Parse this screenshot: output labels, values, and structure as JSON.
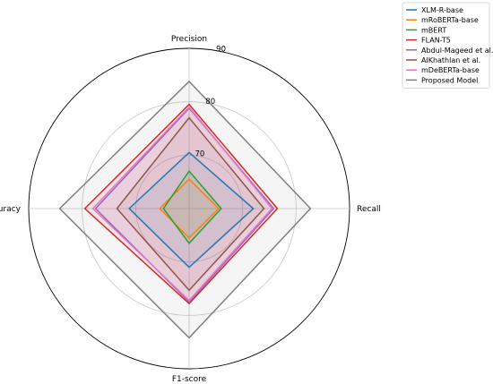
{
  "chart_data": {
    "type": "radar",
    "axes": [
      "Precision",
      "Recall",
      "F1-score",
      "Accuracy"
    ],
    "rlim": [
      60,
      90
    ],
    "rticks": [
      70,
      80,
      90
    ],
    "grid": true,
    "legend_position": "top-right",
    "series": [
      {
        "name": "XLM-R-base",
        "color": "#1f77b4",
        "values": [
          70.5,
          72.0,
          71.0,
          71.2
        ]
      },
      {
        "name": "mRoBERTa-base",
        "color": "#ff7f0e",
        "values": [
          65.5,
          65.5,
          65.5,
          65.5
        ]
      },
      {
        "name": "mBERT",
        "color": "#2ca02c",
        "values": [
          67.0,
          66.0,
          66.5,
          64.8
        ]
      },
      {
        "name": "FLAN-T5",
        "color": "#d62728",
        "values": [
          79.5,
          76.5,
          77.8,
          79.5
        ]
      },
      {
        "name": "Abdul-Mageed et al.",
        "color": "#9467bd",
        "values": [
          78.8,
          75.8,
          77.5,
          77.5
        ]
      },
      {
        "name": "AlKhathlan et al.",
        "color": "#8c564b",
        "values": [
          77.0,
          74.0,
          75.3,
          73.5
        ]
      },
      {
        "name": "mDeBERTa-base",
        "color": "#e377c2",
        "values": [
          79.0,
          75.5,
          77.2,
          78.0
        ]
      },
      {
        "name": "Proposed Model",
        "color": "#7f7f7f",
        "values": [
          83.8,
          82.7,
          84.2,
          84.2
        ]
      }
    ]
  }
}
